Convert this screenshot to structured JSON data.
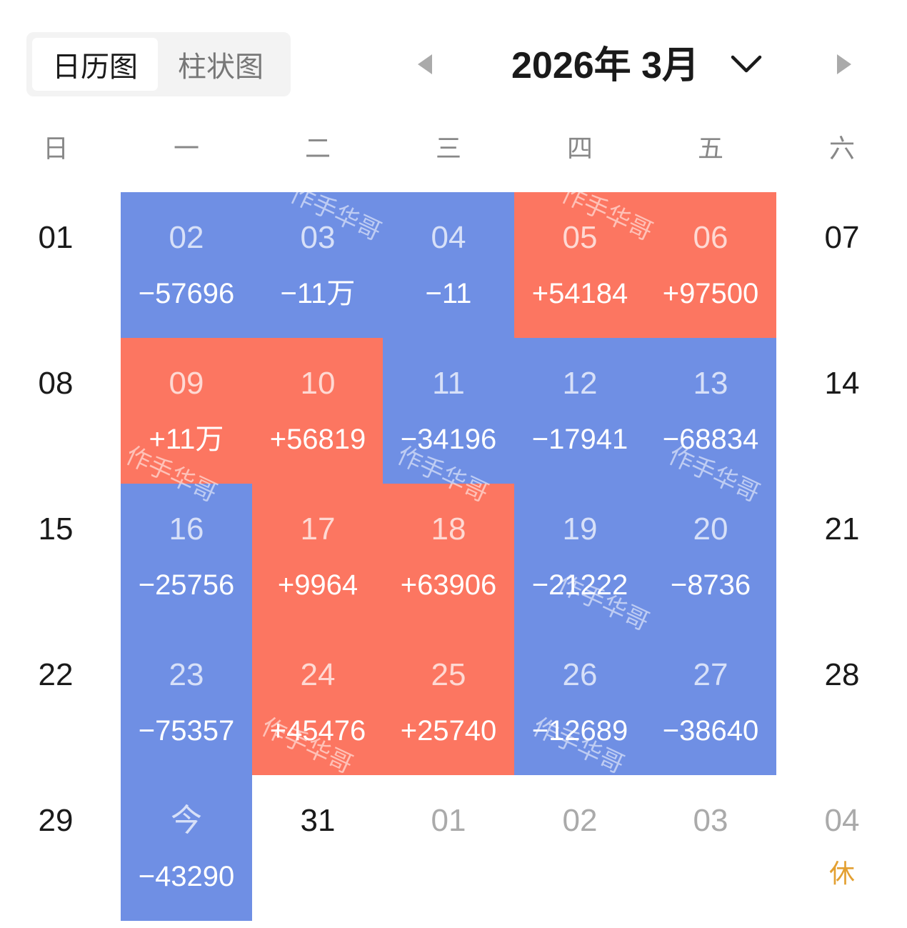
{
  "view_toggle": {
    "options": [
      "日历图",
      "柱状图"
    ],
    "selected": "日历图"
  },
  "header": {
    "month_title": "2026年 3月"
  },
  "icons": {
    "prev": "caret-left-icon",
    "next": "caret-right-icon",
    "dropdown": "chevron-down-icon"
  },
  "weekdays": [
    "日",
    "一",
    "二",
    "三",
    "四",
    "五",
    "六"
  ],
  "watermark": "作手华哥",
  "colors": {
    "gain": "#fc7661",
    "loss": "#6f8fe4",
    "holiday": "#e3a032"
  },
  "weeks": [
    [
      {
        "day": "01"
      },
      {
        "day": "02",
        "pnl": "−57696",
        "tone": "loss"
      },
      {
        "day": "03",
        "pnl": "−11万",
        "tone": "loss"
      },
      {
        "day": "04",
        "pnl": "−11",
        "tone": "loss"
      },
      {
        "day": "05",
        "pnl": "+54184",
        "tone": "gain"
      },
      {
        "day": "06",
        "pnl": "+97500",
        "tone": "gain"
      },
      {
        "day": "07"
      }
    ],
    [
      {
        "day": "08"
      },
      {
        "day": "09",
        "pnl": "+11万",
        "tone": "gain"
      },
      {
        "day": "10",
        "pnl": "+56819",
        "tone": "gain"
      },
      {
        "day": "11",
        "pnl": "−34196",
        "tone": "loss"
      },
      {
        "day": "12",
        "pnl": "−17941",
        "tone": "loss"
      },
      {
        "day": "13",
        "pnl": "−68834",
        "tone": "loss"
      },
      {
        "day": "14"
      }
    ],
    [
      {
        "day": "15"
      },
      {
        "day": "16",
        "pnl": "−25756",
        "tone": "loss"
      },
      {
        "day": "17",
        "pnl": "+9964",
        "tone": "gain"
      },
      {
        "day": "18",
        "pnl": "+63906",
        "tone": "gain"
      },
      {
        "day": "19",
        "pnl": "−21222",
        "tone": "loss"
      },
      {
        "day": "20",
        "pnl": "−8736",
        "tone": "loss"
      },
      {
        "day": "21"
      }
    ],
    [
      {
        "day": "22"
      },
      {
        "day": "23",
        "pnl": "−75357",
        "tone": "loss"
      },
      {
        "day": "24",
        "pnl": "+45476",
        "tone": "gain"
      },
      {
        "day": "25",
        "pnl": "+25740",
        "tone": "gain"
      },
      {
        "day": "26",
        "pnl": "−12689",
        "tone": "loss"
      },
      {
        "day": "27",
        "pnl": "−38640",
        "tone": "loss"
      },
      {
        "day": "28"
      }
    ],
    [
      {
        "day": "29"
      },
      {
        "day": "今",
        "pnl": "−43290",
        "tone": "loss",
        "today": true
      },
      {
        "day": "31"
      },
      {
        "day": "01",
        "other": true
      },
      {
        "day": "02",
        "other": true
      },
      {
        "day": "03",
        "other": true
      },
      {
        "day": "04",
        "other": true,
        "tag": "休"
      }
    ]
  ]
}
